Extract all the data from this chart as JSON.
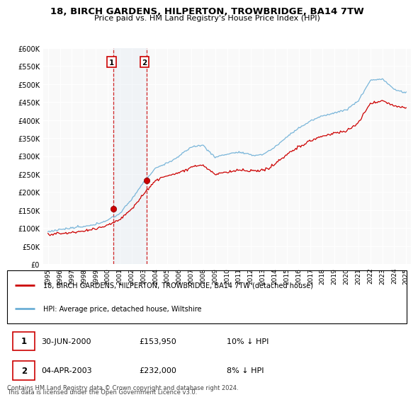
{
  "title": "18, BIRCH GARDENS, HILPERTON, TROWBRIDGE, BA14 7TW",
  "subtitle": "Price paid vs. HM Land Registry's House Price Index (HPI)",
  "legend_line1": "18, BIRCH GARDENS, HILPERTON, TROWBRIDGE, BA14 7TW (detached house)",
  "legend_line2": "HPI: Average price, detached house, Wiltshire",
  "transaction1_date": "30-JUN-2000",
  "transaction1_price": "£153,950",
  "transaction1_hpi": "10% ↓ HPI",
  "transaction2_date": "04-APR-2003",
  "transaction2_price": "£232,000",
  "transaction2_hpi": "8% ↓ HPI",
  "footnote1": "Contains HM Land Registry data © Crown copyright and database right 2024.",
  "footnote2": "This data is licensed under the Open Government Licence v3.0.",
  "hpi_color": "#6baed6",
  "price_color": "#cc0000",
  "shade_color": "#dce6f1",
  "ylim": [
    0,
    600000
  ],
  "yticks": [
    0,
    50000,
    100000,
    150000,
    200000,
    250000,
    300000,
    350000,
    400000,
    450000,
    500000,
    550000,
    600000
  ],
  "ytick_labels": [
    "£0",
    "£50K",
    "£100K",
    "£150K",
    "£200K",
    "£250K",
    "£300K",
    "£350K",
    "£400K",
    "£450K",
    "£500K",
    "£550K",
    "£600K"
  ],
  "sale1_year": 2000.49,
  "sale1_price": 153950,
  "sale2_year": 2003.25,
  "sale2_price": 232000,
  "background_color": "#ffffff",
  "plot_bg_color": "#f9f9f9"
}
